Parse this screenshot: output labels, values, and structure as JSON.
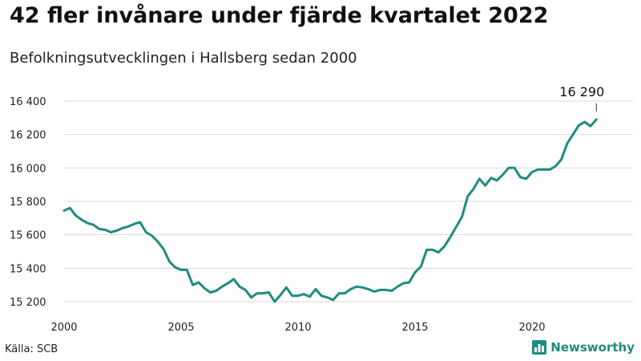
{
  "header": {
    "title": "42 fler invånare under fjärde kvartalet 2022",
    "subtitle": "Befolkningsutvecklingen i Hallsberg sedan 2000"
  },
  "footer": {
    "source": "Källa: SCB",
    "brand": "Newsworthy",
    "brand_icon": "newsworthy-logo-icon"
  },
  "colors": {
    "line": "#1e8c7e",
    "grid": "#d8d8d8",
    "brand": "#1e8c7e"
  },
  "chart_data": {
    "type": "line",
    "title": "42 fler invånare under fjärde kvartalet 2022",
    "subtitle": "Befolkningsutvecklingen i Hallsberg sedan 2000",
    "xlabel": "",
    "ylabel": "",
    "xlim": [
      2000,
      2023
    ],
    "ylim": [
      15160,
      16440
    ],
    "grid": true,
    "legend": "none",
    "x_ticks": [
      2000,
      2005,
      2010,
      2015,
      2020
    ],
    "x_tick_labels": [
      "2000",
      "2005",
      "2010",
      "2015",
      "2020"
    ],
    "y_ticks": [
      15200,
      15400,
      15600,
      15800,
      16000,
      16200,
      16400
    ],
    "y_tick_labels": [
      "15 200",
      "15 400",
      "15 600",
      "15 800",
      "16 000",
      "16 200",
      "16 400"
    ],
    "end_label": "16 290",
    "series": [
      {
        "x": [
          2000.0,
          2000.25,
          2000.5,
          2000.75,
          2001.0,
          2001.25,
          2001.5,
          2001.75,
          2002.0,
          2002.25,
          2002.5,
          2002.75,
          2003.0,
          2003.25,
          2003.5,
          2003.75,
          2004.0,
          2004.25,
          2004.5,
          2004.75,
          2005.0,
          2005.25,
          2005.5,
          2005.75,
          2006.0,
          2006.25,
          2006.5,
          2006.75,
          2007.0,
          2007.25,
          2007.5,
          2007.75,
          2008.0,
          2008.25,
          2008.5,
          2008.75,
          2009.0,
          2009.25,
          2009.5,
          2009.75,
          2010.0,
          2010.25,
          2010.5,
          2010.75,
          2011.0,
          2011.25,
          2011.5,
          2011.75,
          2012.0,
          2012.25,
          2012.5,
          2012.75,
          2013.0,
          2013.25,
          2013.5,
          2013.75,
          2014.0,
          2014.25,
          2014.5,
          2014.75,
          2015.0,
          2015.25,
          2015.5,
          2015.75,
          2016.0,
          2016.25,
          2016.5,
          2016.75,
          2017.0,
          2017.25,
          2017.5,
          2017.75,
          2018.0,
          2018.25,
          2018.5,
          2018.75,
          2019.0,
          2019.25,
          2019.5,
          2019.75,
          2020.0,
          2020.25,
          2020.5,
          2020.75,
          2021.0,
          2021.25,
          2021.5,
          2021.75,
          2022.0,
          2022.25,
          2022.5,
          2022.75
        ],
        "values": [
          15745,
          15760,
          15715,
          15690,
          15670,
          15660,
          15635,
          15630,
          15615,
          15625,
          15640,
          15650,
          15665,
          15675,
          15615,
          15595,
          15560,
          15515,
          15440,
          15405,
          15390,
          15390,
          15300,
          15315,
          15280,
          15255,
          15265,
          15290,
          15310,
          15335,
          15290,
          15270,
          15225,
          15250,
          15250,
          15255,
          15200,
          15240,
          15285,
          15235,
          15235,
          15245,
          15230,
          15275,
          15235,
          15225,
          15210,
          15250,
          15250,
          15275,
          15290,
          15285,
          15275,
          15260,
          15270,
          15270,
          15265,
          15290,
          15310,
          15315,
          15375,
          15410,
          15510,
          15510,
          15495,
          15530,
          15585,
          15645,
          15705,
          15830,
          15875,
          15935,
          15895,
          15940,
          15925,
          15960,
          16000,
          16000,
          15945,
          15935,
          15975,
          15990,
          15990,
          15990,
          16010,
          16050,
          16145,
          16200,
          16255,
          16275,
          16250,
          16290
        ]
      }
    ]
  }
}
